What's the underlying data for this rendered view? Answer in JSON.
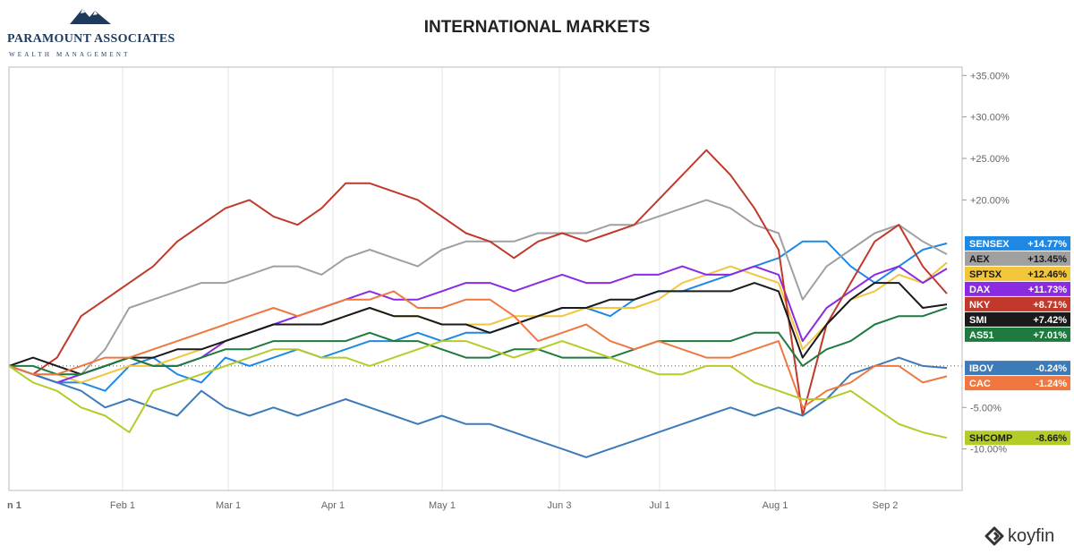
{
  "firm": {
    "name": "PARAMOUNT ASSOCIATES",
    "tagline": "WEALTH MANAGEMENT"
  },
  "brand": {
    "name": "koyfin",
    "icon": "koyfin-logo-icon"
  },
  "chart_data": {
    "type": "line",
    "title": "INTERNATIONAL MARKETS",
    "xlabel": "",
    "ylabel": "",
    "ylim": [
      -15,
      36
    ],
    "x_ticks": [
      "n 1",
      "Feb 1",
      "Mar 1",
      "Apr 1",
      "May 1",
      "Jun 3",
      "Jul 1",
      "Aug 1",
      "Sep 2"
    ],
    "y_ticks": [
      "+35.00%",
      "+30.00%",
      "+25.00%",
      "+20.00%",
      "-5.00%",
      "-10.00%"
    ],
    "y_tick_values": [
      35,
      30,
      25,
      20,
      -5,
      -10
    ],
    "grid": "vertical",
    "zero_line": "dotted",
    "legend_placement": "right-edge end labels",
    "x_note": "trading-day series, one value per period from early January to mid September",
    "series": [
      {
        "name": "SENSEX",
        "change": "+14.77%",
        "color": "#1e88e5",
        "values": [
          0,
          -1,
          -2,
          -2,
          -3,
          0,
          1,
          -1,
          -2,
          1,
          0,
          1,
          2,
          1,
          2,
          3,
          3,
          4,
          3,
          4,
          4,
          5,
          6,
          7,
          7,
          6,
          8,
          9,
          9,
          10,
          11,
          12,
          13,
          15,
          15,
          12,
          10,
          12,
          14,
          14.77
        ]
      },
      {
        "name": "AEX",
        "change": "+13.45%",
        "color": "#a0a0a0",
        "values": [
          0,
          -1,
          -2,
          -1,
          2,
          7,
          8,
          9,
          10,
          10,
          11,
          12,
          12,
          11,
          13,
          14,
          13,
          12,
          14,
          15,
          15,
          15,
          16,
          16,
          16,
          17,
          17,
          18,
          19,
          20,
          19,
          17,
          16,
          8,
          12,
          14,
          16,
          17,
          15,
          13.45
        ]
      },
      {
        "name": "SPTSX",
        "change": "+12.46%",
        "color": "#f2c53a",
        "values": [
          0,
          -1,
          -1,
          -2,
          -1,
          0,
          0,
          1,
          2,
          3,
          4,
          5,
          5,
          5,
          6,
          7,
          6,
          6,
          5,
          5,
          5,
          6,
          6,
          6,
          7,
          7,
          7,
          8,
          10,
          11,
          12,
          11,
          10,
          2,
          5,
          8,
          9,
          11,
          10,
          12.46
        ]
      },
      {
        "name": "DAX",
        "change": "+11.73%",
        "color": "#8a2be2",
        "values": [
          0,
          -1,
          -2,
          -1,
          0,
          1,
          0,
          0,
          1,
          3,
          4,
          5,
          6,
          7,
          8,
          9,
          8,
          8,
          9,
          10,
          10,
          9,
          10,
          11,
          10,
          10,
          11,
          11,
          12,
          11,
          11,
          12,
          11,
          3,
          7,
          9,
          11,
          12,
          10,
          11.73
        ]
      },
      {
        "name": "NKY",
        "change": "+8.71%",
        "color": "#c0392b",
        "values": [
          0,
          -1,
          1,
          6,
          8,
          10,
          12,
          15,
          17,
          19,
          20,
          18,
          17,
          19,
          22,
          22,
          21,
          20,
          18,
          16,
          15,
          13,
          15,
          16,
          15,
          16,
          17,
          20,
          23,
          26,
          23,
          19,
          14,
          -6,
          5,
          10,
          15,
          17,
          12,
          8.71
        ]
      },
      {
        "name": "SMI",
        "change": "+7.42%",
        "color": "#1a1a1a",
        "values": [
          0,
          1,
          0,
          -1,
          0,
          1,
          1,
          2,
          2,
          3,
          4,
          5,
          5,
          5,
          6,
          7,
          6,
          6,
          5,
          5,
          4,
          5,
          6,
          7,
          7,
          8,
          8,
          9,
          9,
          9,
          9,
          10,
          9,
          1,
          5,
          8,
          10,
          10,
          7,
          7.42
        ]
      },
      {
        "name": "AS51",
        "change": "+7.01%",
        "color": "#1e7a3e",
        "values": [
          0,
          0,
          -1,
          -1,
          0,
          1,
          0,
          0,
          1,
          2,
          2,
          3,
          3,
          3,
          3,
          4,
          3,
          3,
          2,
          1,
          1,
          2,
          2,
          1,
          1,
          1,
          2,
          3,
          3,
          3,
          3,
          4,
          4,
          0,
          2,
          3,
          5,
          6,
          6,
          7.01
        ]
      },
      {
        "name": "IBOV",
        "change": "-0.24%",
        "color": "#3d7bb8",
        "values": [
          0,
          -1,
          -2,
          -3,
          -5,
          -4,
          -5,
          -6,
          -3,
          -5,
          -6,
          -5,
          -6,
          -5,
          -4,
          -5,
          -6,
          -7,
          -6,
          -7,
          -7,
          -8,
          -9,
          -10,
          -11,
          -10,
          -9,
          -8,
          -7,
          -6,
          -5,
          -6,
          -5,
          -6,
          -4,
          -1,
          0,
          1,
          0,
          -0.24
        ]
      },
      {
        "name": "CAC",
        "change": "-1.24%",
        "color": "#f07840",
        "values": [
          0,
          -1,
          -1,
          0,
          1,
          1,
          2,
          3,
          4,
          5,
          6,
          7,
          6,
          7,
          8,
          8,
          9,
          7,
          7,
          8,
          8,
          6,
          3,
          4,
          5,
          3,
          2,
          3,
          2,
          1,
          1,
          2,
          3,
          -5,
          -3,
          -2,
          0,
          0,
          -2,
          -1.24
        ]
      },
      {
        "name": "SHCOMP",
        "change": "-8.66%",
        "color": "#b5cc28",
        "values": [
          0,
          -2,
          -3,
          -5,
          -6,
          -8,
          -3,
          -2,
          -1,
          0,
          1,
          2,
          2,
          1,
          1,
          0,
          1,
          2,
          3,
          3,
          2,
          1,
          2,
          3,
          2,
          1,
          0,
          -1,
          -1,
          0,
          0,
          -2,
          -3,
          -4,
          -4,
          -3,
          -5,
          -7,
          -8,
          -8.66
        ]
      }
    ]
  }
}
